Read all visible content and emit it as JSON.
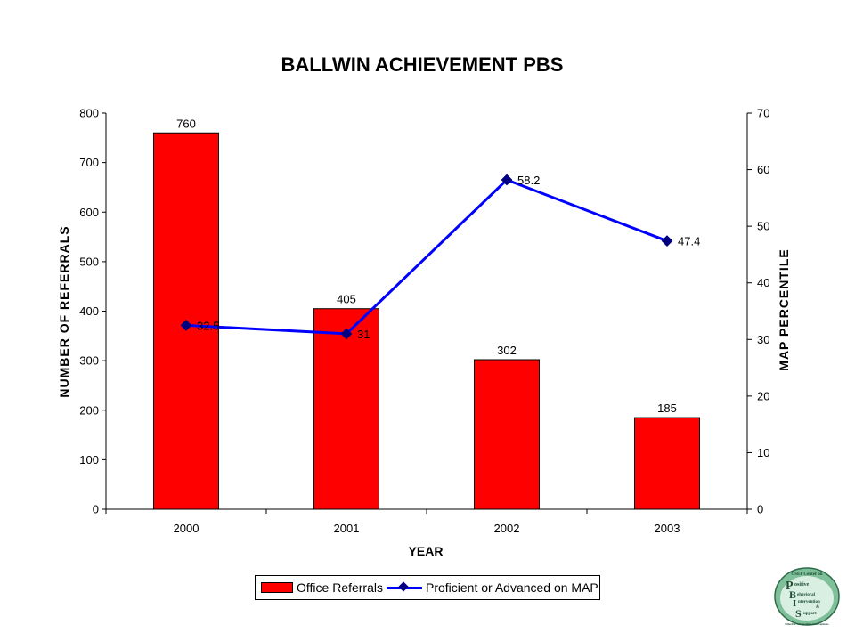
{
  "chart_data": {
    "type": "bar",
    "title": "BALLWIN ACHIEVEMENT PBS",
    "xlabel": "YEAR",
    "ylabel": "NUMBER OF REFERRALS",
    "y2label": "MAP PERCENTILE",
    "categories": [
      "2000",
      "2001",
      "2002",
      "2003"
    ],
    "ylim": [
      0,
      800
    ],
    "yticks": [
      0,
      100,
      200,
      300,
      400,
      500,
      600,
      700,
      800
    ],
    "y2lim": [
      0,
      70
    ],
    "y2ticks": [
      0,
      10,
      20,
      30,
      40,
      50,
      60,
      70
    ],
    "series": [
      {
        "name": "Office Referrals",
        "type": "bar",
        "axis": "left",
        "values": [
          760,
          405,
          302,
          185
        ],
        "labels": [
          "760",
          "405",
          "302",
          "185"
        ],
        "color": "#ff0000"
      },
      {
        "name": "Proficient or Advanced on MAP",
        "type": "line",
        "axis": "right",
        "values": [
          32.5,
          31,
          58.2,
          47.4
        ],
        "labels": [
          "32.5",
          "31",
          "58.2",
          "47.4"
        ],
        "color": "#0000ff",
        "marker_color": "#000080"
      }
    ],
    "legend": "bottom-center",
    "grid": false
  },
  "legend": {
    "bar_label": "Office Referrals",
    "line_label": "Proficient or Advanced on MAP"
  },
  "logo": {
    "caption": "OSEP Center on",
    "letters": [
      "P",
      "B",
      "I",
      "S"
    ],
    "words": [
      "ositive",
      "ehavioral",
      "ntervention",
      "upport"
    ],
    "amp": "&",
    "tagline": "Effective School-Wide Interventions"
  }
}
